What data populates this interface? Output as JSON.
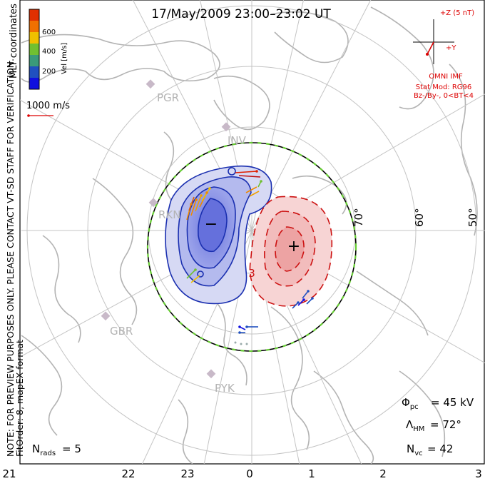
{
  "title": "17/May/2009 23:00–23:02 UT",
  "colorbar": {
    "axis_label": "Vel [m/s]",
    "ticks": [
      "600",
      "400",
      "200"
    ],
    "colors": [
      "#e03000",
      "#f07000",
      "#f0c000",
      "#70c030",
      "#3a9a7a",
      "#2050c0",
      "#1010e0"
    ]
  },
  "coordinates": "MLT coordinates",
  "scale_vector": "1000 m/s",
  "side_note": "NOTE: FOR PREVIEW PURPOSES ONLY. PLEASE CONTACT VT-SD STAFF FOR VERIFICATION.",
  "side_note2": "FitOrder: 8, mapEX format",
  "imf": {
    "plus_z": "+Z (5 nT)",
    "plus_y": "+Y",
    "source": "OMNI IMF",
    "stat_mod": "Stat Mod: RG96",
    "condition": "Bz-/By-, 0<BT<4"
  },
  "latitude_labels": [
    "70°",
    "60°",
    "50°"
  ],
  "stations": [
    "PGR",
    "INV",
    "RKN",
    "GBR",
    "PYK"
  ],
  "mlt_labels": [
    "21",
    "22",
    "23",
    "0",
    "1",
    "2",
    "3"
  ],
  "stats": {
    "phi_pc": "45 kV",
    "lambda_hm": "72°",
    "n_vc": "42",
    "n_rads": "5"
  },
  "contours": {
    "negative_cell_color": "#1a2fb0",
    "positive_cell_color": "#cc1111",
    "negative_marker": "−",
    "positive_marker": "+",
    "contour_label": "3"
  },
  "colors": {
    "land": "#b8b8b8",
    "grid": "#c4c4c4",
    "boundary_green": "#66cc33",
    "accent_red": "#dd0000"
  }
}
